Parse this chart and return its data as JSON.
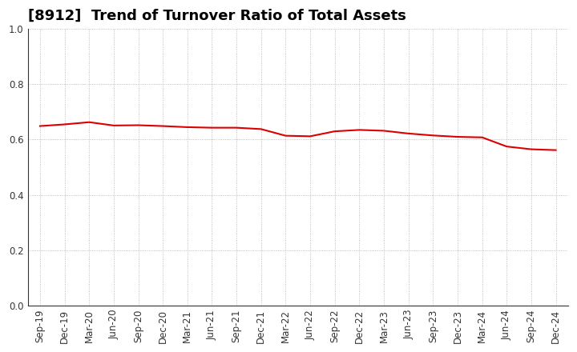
{
  "title": "[8912]  Trend of Turnover Ratio of Total Assets",
  "x_labels": [
    "Sep-19",
    "Dec-19",
    "Mar-20",
    "Jun-20",
    "Sep-20",
    "Dec-20",
    "Mar-21",
    "Jun-21",
    "Sep-21",
    "Dec-21",
    "Mar-22",
    "Jun-22",
    "Sep-22",
    "Dec-22",
    "Mar-23",
    "Jun-23",
    "Sep-23",
    "Dec-23",
    "Mar-24",
    "Jun-24",
    "Sep-24",
    "Dec-24"
  ],
  "values": [
    0.649,
    0.655,
    0.663,
    0.651,
    0.652,
    0.649,
    0.645,
    0.643,
    0.643,
    0.638,
    0.614,
    0.612,
    0.63,
    0.635,
    0.632,
    0.622,
    0.615,
    0.61,
    0.608,
    0.575,
    0.565,
    0.562
  ],
  "line_color": "#dd0000",
  "ylim": [
    0.0,
    1.0
  ],
  "yticks": [
    0.0,
    0.2,
    0.4,
    0.6,
    0.8,
    1.0
  ],
  "background_color": "#ffffff",
  "grid_color": "#999999",
  "title_fontsize": 13,
  "tick_fontsize": 8.5
}
